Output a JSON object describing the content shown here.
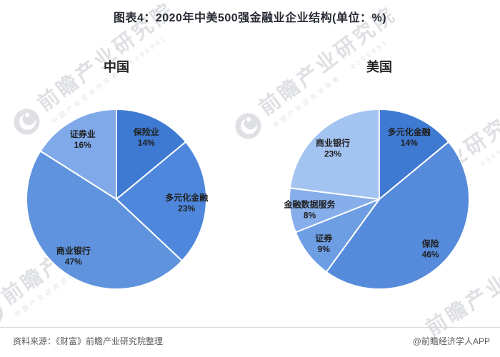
{
  "title": "图表4：2020年中美500强金融业企业结构(单位：%)",
  "watermark": {
    "main": "前瞻产业研究院",
    "sub": "中国产业咨询领导者 · 8395991",
    "logo": "qianzhan-circle-logo",
    "color": "#dcdee2"
  },
  "chart_data": [
    {
      "type": "pie",
      "title": "中国",
      "unit": "%",
      "start_angle_deg": 0,
      "direction": "clockwise",
      "radius_px": 126,
      "label_radius_ratio": 0.78,
      "slices": [
        {
          "name": "保险业",
          "value": 14,
          "color": "#3e7ad2"
        },
        {
          "name": "多元化金融",
          "value": 23,
          "color": "#4e87dc"
        },
        {
          "name": "商业银行",
          "value": 47,
          "color": "#5f93dd"
        },
        {
          "name": "证券业",
          "value": 16,
          "color": "#7fa9e9"
        }
      ]
    },
    {
      "type": "pie",
      "title": "美国",
      "unit": "%",
      "start_angle_deg": 0,
      "direction": "clockwise",
      "radius_px": 126,
      "label_radius_ratio": 0.78,
      "slices": [
        {
          "name": "多元化金融",
          "value": 14,
          "color": "#3e7ad2"
        },
        {
          "name": "保险",
          "value": 46,
          "color": "#568bdb"
        },
        {
          "name": "证券",
          "value": 9,
          "color": "#6d9de3"
        },
        {
          "name": "金融数据服务",
          "value": 8,
          "color": "#86aeea"
        },
        {
          "name": "商业银行",
          "value": 23,
          "color": "#a3c3f0"
        }
      ]
    }
  ],
  "footer": {
    "source": "资料来源：《财富》前瞻产业研究院整理",
    "credit": "@前瞻经济学人APP"
  }
}
